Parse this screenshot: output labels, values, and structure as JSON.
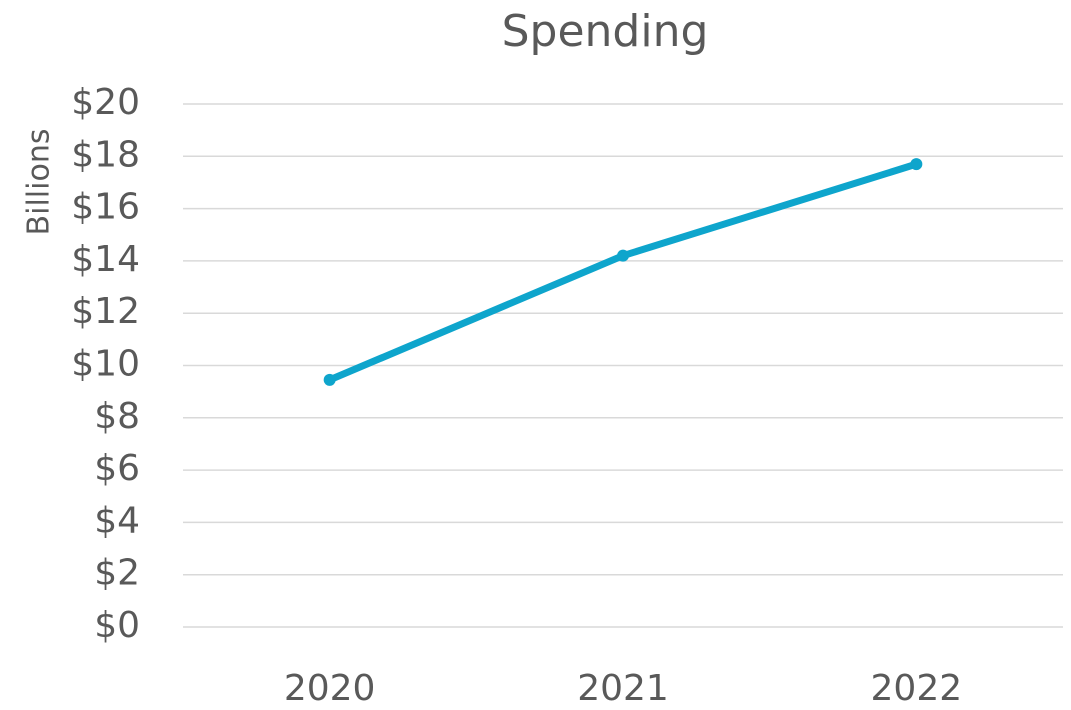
{
  "chart_data": {
    "type": "line",
    "title": "Spending",
    "y_label": "Billions",
    "categories": [
      "2020",
      "2021",
      "2022"
    ],
    "series": [
      {
        "name": "Spending",
        "color": "#0ea5cc",
        "values": [
          9.45,
          14.2,
          17.7
        ]
      }
    ],
    "ylim": [
      0,
      20
    ],
    "yticks": [
      {
        "value": 0,
        "label": "$0"
      },
      {
        "value": 2,
        "label": "$2"
      },
      {
        "value": 4,
        "label": "$4"
      },
      {
        "value": 6,
        "label": "$6"
      },
      {
        "value": 8,
        "label": "$8"
      },
      {
        "value": 10,
        "label": "$10"
      },
      {
        "value": 12,
        "label": "$12"
      },
      {
        "value": 14,
        "label": "$14"
      },
      {
        "value": 16,
        "label": "$16"
      },
      {
        "value": 18,
        "label": "$18"
      },
      {
        "value": 20,
        "label": "$20"
      }
    ],
    "grid": true
  }
}
